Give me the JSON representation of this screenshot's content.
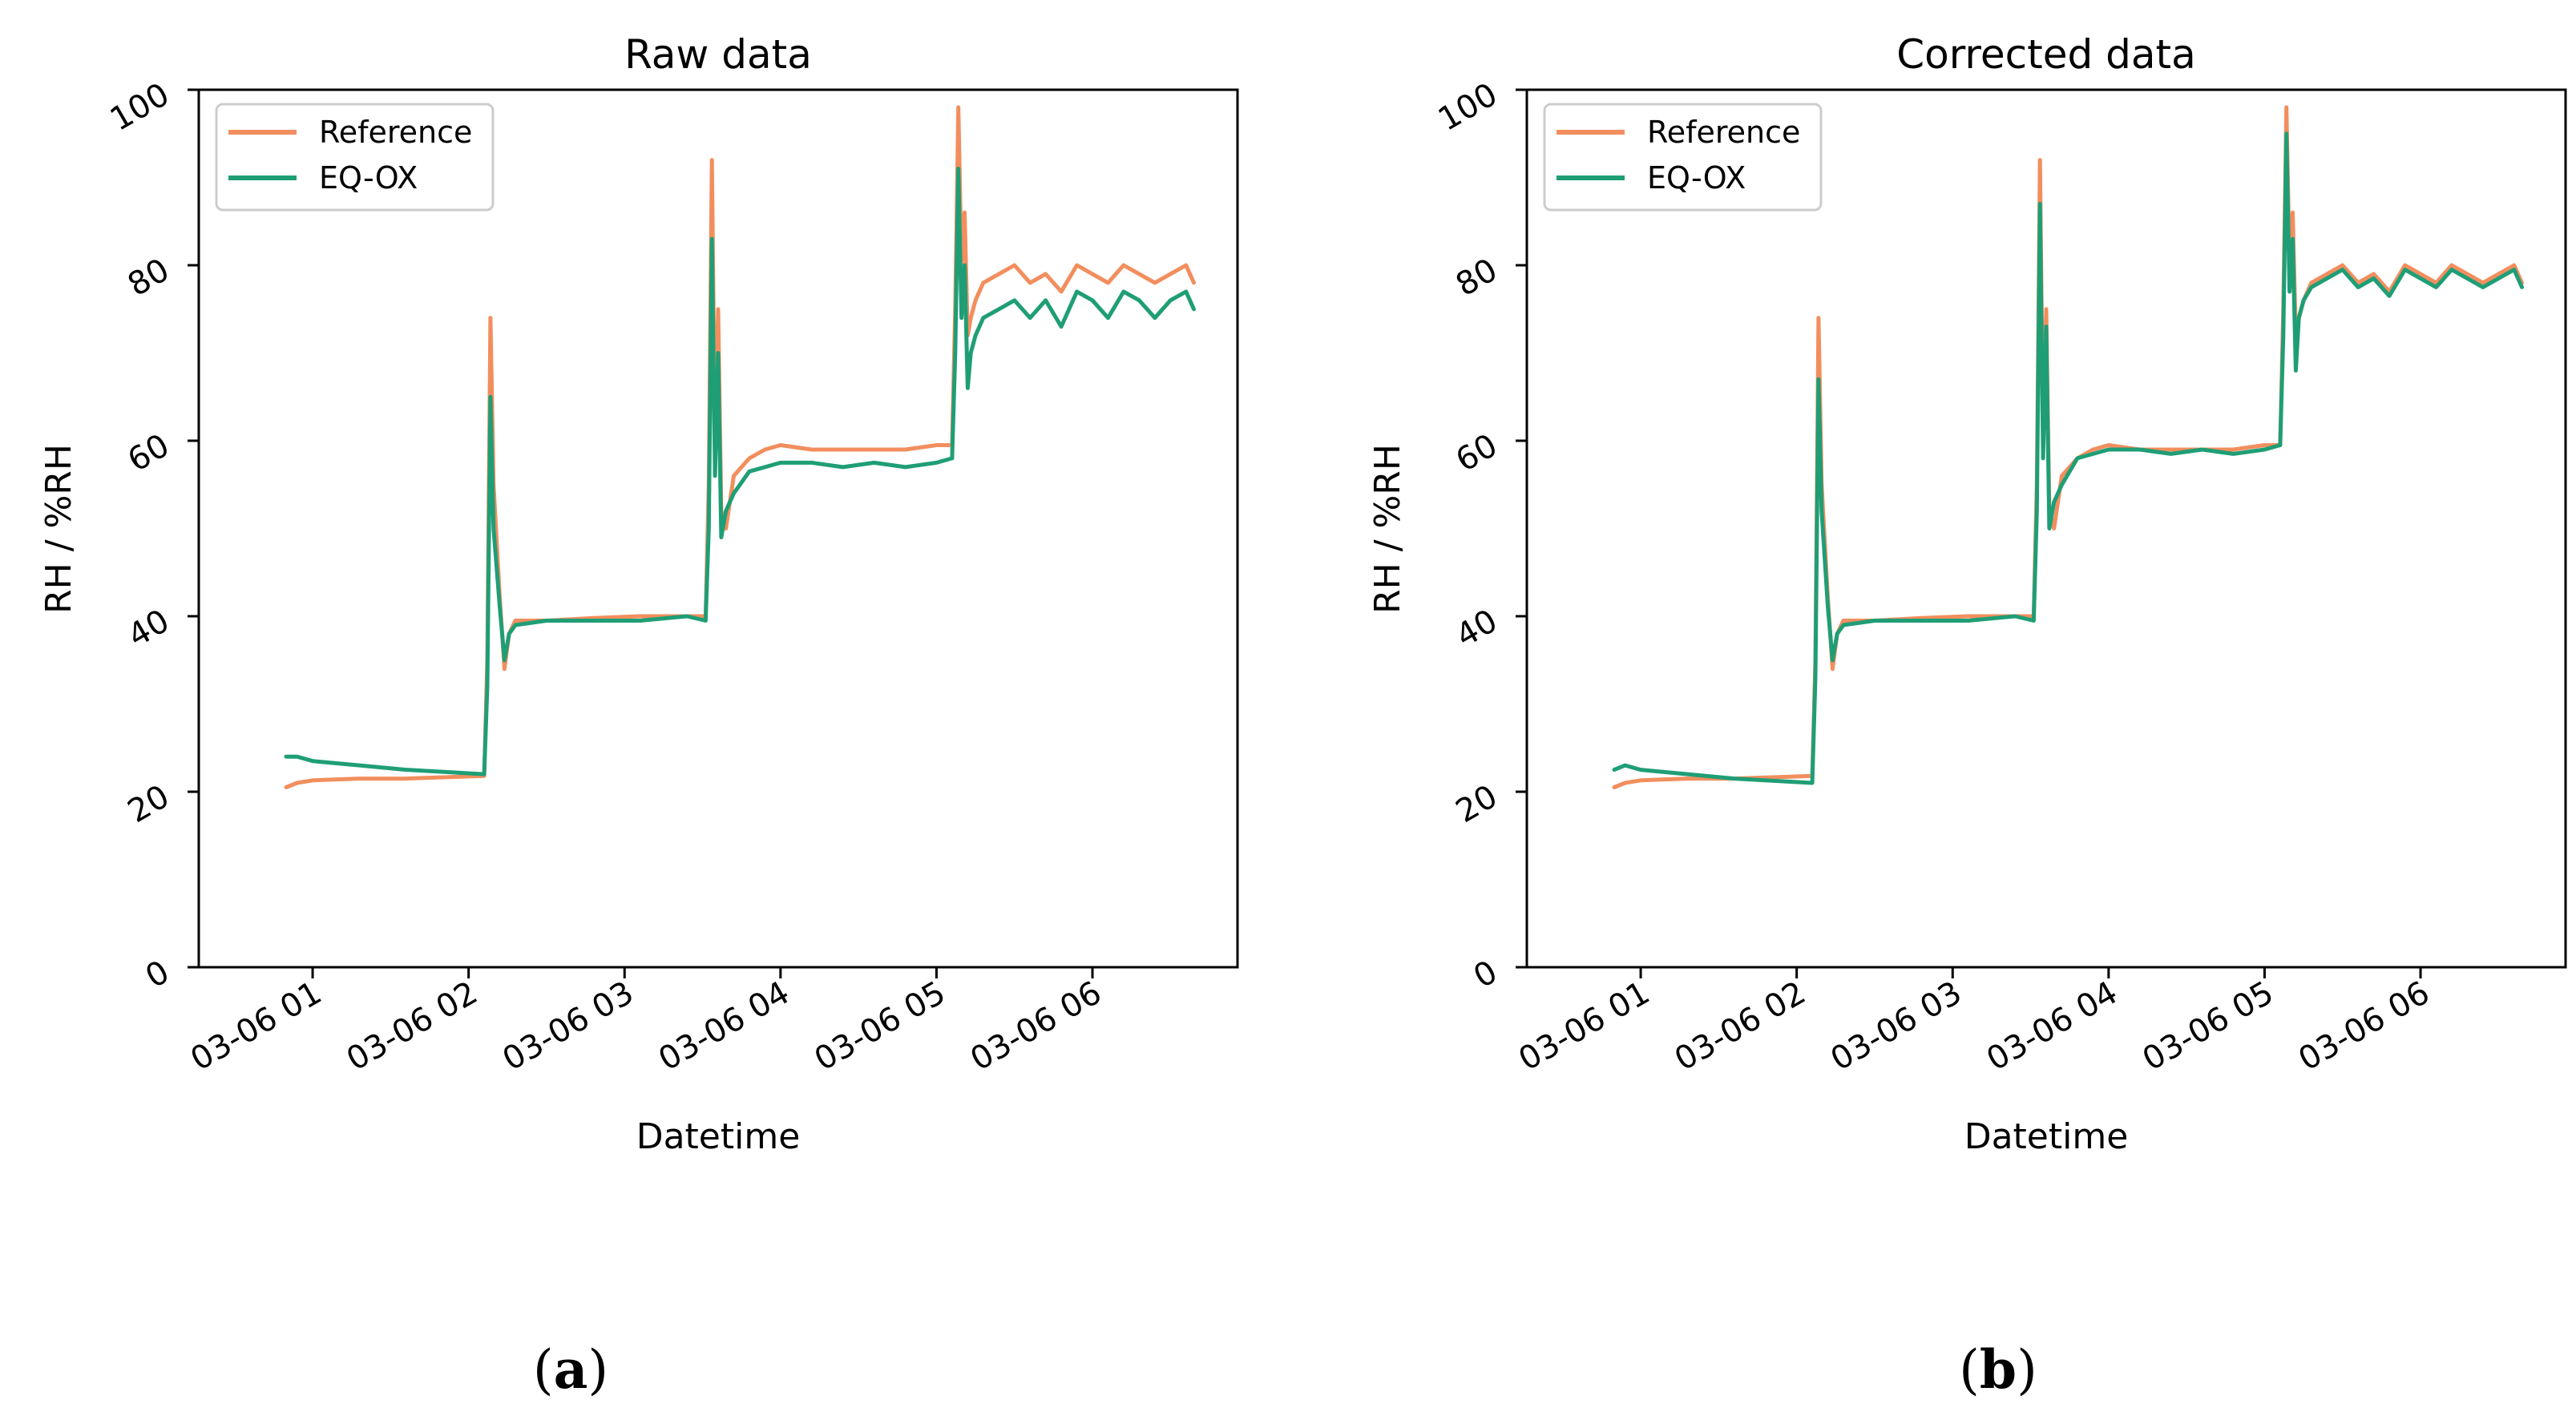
{
  "chart_data": [
    {
      "type": "line",
      "panel_label": "a",
      "title": "Raw data",
      "xlabel": "Datetime",
      "ylabel": "RH / %RH",
      "x_unit": "hours after 03-06 00:00",
      "xlim": [
        0.27,
        6.93
      ],
      "ylim": [
        0,
        100
      ],
      "yticks": [
        0,
        20,
        40,
        60,
        80,
        100
      ],
      "xticks": [
        {
          "value": 1,
          "label": "03-06 01"
        },
        {
          "value": 2,
          "label": "03-06 02"
        },
        {
          "value": 3,
          "label": "03-06 03"
        },
        {
          "value": 4,
          "label": "03-06 04"
        },
        {
          "value": 5,
          "label": "03-06 05"
        },
        {
          "value": 6,
          "label": "03-06 06"
        }
      ],
      "legend": {
        "placement": "top-left",
        "entries": [
          "Reference",
          "EQ-OX"
        ]
      },
      "series": [
        {
          "name": "Reference",
          "color": "#f28e5e",
          "x": [
            0.83,
            0.9,
            1.0,
            1.3,
            1.6,
            2.1,
            2.12,
            2.14,
            2.16,
            2.2,
            2.23,
            2.26,
            2.3,
            2.5,
            2.8,
            3.1,
            3.4,
            3.52,
            3.54,
            3.56,
            3.58,
            3.6,
            3.62,
            3.65,
            3.7,
            3.8,
            3.9,
            4.0,
            4.2,
            4.4,
            4.6,
            4.8,
            5.0,
            5.1,
            5.12,
            5.14,
            5.16,
            5.18,
            5.2,
            5.22,
            5.25,
            5.3,
            5.4,
            5.5,
            5.6,
            5.7,
            5.8,
            5.9,
            6.0,
            6.1,
            6.2,
            6.3,
            6.4,
            6.5,
            6.6,
            6.65
          ],
          "y": [
            20.5,
            21.0,
            21.3,
            21.5,
            21.5,
            21.8,
            35.0,
            74.0,
            55.0,
            42.0,
            34.0,
            38.0,
            39.5,
            39.5,
            39.8,
            40.0,
            40.0,
            40.0,
            55.0,
            92.0,
            60.0,
            75.0,
            52.0,
            50.0,
            56.0,
            58.0,
            59.0,
            59.5,
            59.0,
            59.0,
            59.0,
            59.0,
            59.5,
            59.5,
            75.0,
            98.0,
            80.0,
            86.0,
            72.0,
            74.0,
            76.0,
            78.0,
            79.0,
            80.0,
            78.0,
            79.0,
            77.0,
            80.0,
            79.0,
            78.0,
            80.0,
            79.0,
            78.0,
            79.0,
            80.0,
            78.0
          ]
        },
        {
          "name": "EQ-OX",
          "color": "#1f9e76",
          "x": [
            0.83,
            0.9,
            1.0,
            1.3,
            1.6,
            2.1,
            2.12,
            2.14,
            2.16,
            2.2,
            2.23,
            2.26,
            2.3,
            2.5,
            2.8,
            3.1,
            3.4,
            3.52,
            3.54,
            3.56,
            3.58,
            3.6,
            3.62,
            3.65,
            3.7,
            3.8,
            3.9,
            4.0,
            4.2,
            4.4,
            4.6,
            4.8,
            5.0,
            5.1,
            5.12,
            5.14,
            5.16,
            5.18,
            5.2,
            5.22,
            5.25,
            5.3,
            5.4,
            5.5,
            5.6,
            5.7,
            5.8,
            5.9,
            6.0,
            6.1,
            6.2,
            6.3,
            6.4,
            6.5,
            6.6,
            6.65
          ],
          "y": [
            24.0,
            24.0,
            23.5,
            23.0,
            22.5,
            22.0,
            32.0,
            65.0,
            50.0,
            41.0,
            35.0,
            38.0,
            39.0,
            39.5,
            39.5,
            39.5,
            40.0,
            39.5,
            50.0,
            83.0,
            56.0,
            70.0,
            49.0,
            52.0,
            54.0,
            56.5,
            57.0,
            57.5,
            57.5,
            57.0,
            57.5,
            57.0,
            57.5,
            58.0,
            70.0,
            91.0,
            74.0,
            80.0,
            66.0,
            70.0,
            72.0,
            74.0,
            75.0,
            76.0,
            74.0,
            76.0,
            73.0,
            77.0,
            76.0,
            74.0,
            77.0,
            76.0,
            74.0,
            76.0,
            77.0,
            75.0
          ]
        }
      ]
    },
    {
      "type": "line",
      "panel_label": "b",
      "title": "Corrected data",
      "xlabel": "Datetime",
      "ylabel": "RH / %RH",
      "x_unit": "hours after 03-06 00:00",
      "xlim": [
        0.27,
        6.93
      ],
      "ylim": [
        0,
        100
      ],
      "yticks": [
        0,
        20,
        40,
        60,
        80,
        100
      ],
      "xticks": [
        {
          "value": 1,
          "label": "03-06 01"
        },
        {
          "value": 2,
          "label": "03-06 02"
        },
        {
          "value": 3,
          "label": "03-06 03"
        },
        {
          "value": 4,
          "label": "03-06 04"
        },
        {
          "value": 5,
          "label": "03-06 05"
        },
        {
          "value": 6,
          "label": "03-06 06"
        }
      ],
      "legend": {
        "placement": "top-left",
        "entries": [
          "Reference",
          "EQ-OX"
        ]
      },
      "series": [
        {
          "name": "Reference",
          "color": "#f28e5e",
          "x": [
            0.83,
            0.9,
            1.0,
            1.3,
            1.6,
            2.1,
            2.12,
            2.14,
            2.16,
            2.2,
            2.23,
            2.26,
            2.3,
            2.5,
            2.8,
            3.1,
            3.4,
            3.52,
            3.54,
            3.56,
            3.58,
            3.6,
            3.62,
            3.65,
            3.7,
            3.8,
            3.9,
            4.0,
            4.2,
            4.4,
            4.6,
            4.8,
            5.0,
            5.1,
            5.12,
            5.14,
            5.16,
            5.18,
            5.2,
            5.22,
            5.25,
            5.3,
            5.4,
            5.5,
            5.6,
            5.7,
            5.8,
            5.9,
            6.0,
            6.1,
            6.2,
            6.3,
            6.4,
            6.5,
            6.6,
            6.65
          ],
          "y": [
            20.5,
            21.0,
            21.3,
            21.5,
            21.5,
            21.8,
            35.0,
            74.0,
            55.0,
            42.0,
            34.0,
            38.0,
            39.5,
            39.5,
            39.8,
            40.0,
            40.0,
            40.0,
            55.0,
            92.0,
            60.0,
            75.0,
            52.0,
            50.0,
            56.0,
            58.0,
            59.0,
            59.5,
            59.0,
            59.0,
            59.0,
            59.0,
            59.5,
            59.5,
            75.0,
            98.0,
            80.0,
            86.0,
            72.0,
            74.0,
            76.0,
            78.0,
            79.0,
            80.0,
            78.0,
            79.0,
            77.0,
            80.0,
            79.0,
            78.0,
            80.0,
            79.0,
            78.0,
            79.0,
            80.0,
            78.0
          ]
        },
        {
          "name": "EQ-OX",
          "color": "#1f9e76",
          "x": [
            0.83,
            0.9,
            1.0,
            1.3,
            1.6,
            2.1,
            2.12,
            2.14,
            2.16,
            2.2,
            2.23,
            2.26,
            2.3,
            2.5,
            2.8,
            3.1,
            3.4,
            3.52,
            3.54,
            3.56,
            3.58,
            3.6,
            3.62,
            3.65,
            3.7,
            3.8,
            3.9,
            4.0,
            4.2,
            4.4,
            4.6,
            4.8,
            5.0,
            5.1,
            5.12,
            5.14,
            5.16,
            5.18,
            5.2,
            5.22,
            5.25,
            5.3,
            5.4,
            5.5,
            5.6,
            5.7,
            5.8,
            5.9,
            6.0,
            6.1,
            6.2,
            6.3,
            6.4,
            6.5,
            6.6,
            6.65
          ],
          "y": [
            22.5,
            23.0,
            22.5,
            22.0,
            21.5,
            21.0,
            33.0,
            67.0,
            52.0,
            41.0,
            35.0,
            38.0,
            39.0,
            39.5,
            39.5,
            39.5,
            40.0,
            39.5,
            52.0,
            87.0,
            58.0,
            73.0,
            50.0,
            53.0,
            55.0,
            58.0,
            58.5,
            59.0,
            59.0,
            58.5,
            59.0,
            58.5,
            59.0,
            59.5,
            72.0,
            95.0,
            77.0,
            83.0,
            68.0,
            74.0,
            76.0,
            77.5,
            78.5,
            79.5,
            77.5,
            78.5,
            76.5,
            79.5,
            78.5,
            77.5,
            79.5,
            78.5,
            77.5,
            78.5,
            79.5,
            77.5
          ]
        }
      ]
    }
  ]
}
